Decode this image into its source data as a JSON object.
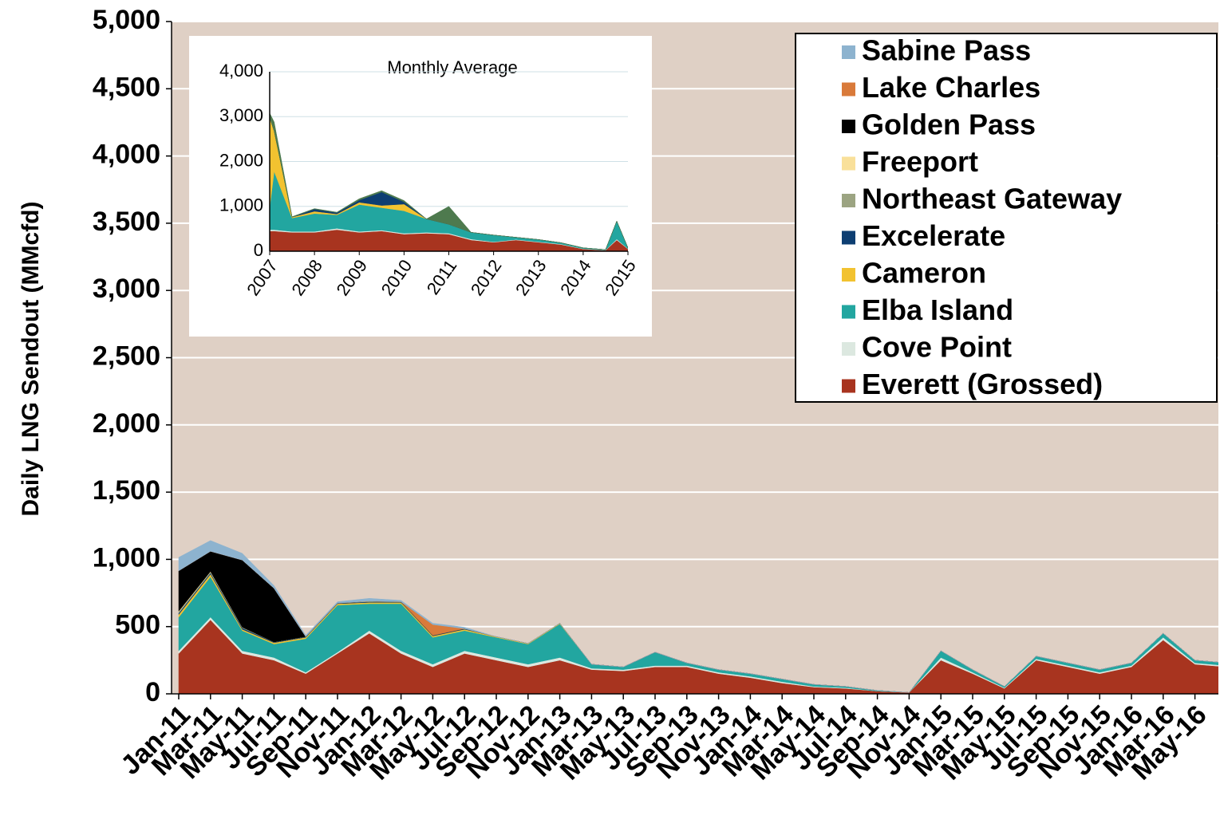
{
  "chart_data": [
    {
      "type": "stacked-area",
      "y_label": "Daily LNG Sendout (MMcfd)",
      "categories": [
        "Jan-11",
        "Mar-11",
        "May-11",
        "Jul-11",
        "Sep-11",
        "Nov-11",
        "Jan-12",
        "Mar-12",
        "May-12",
        "Jul-12",
        "Sep-12",
        "Nov-12",
        "Jan-13",
        "Mar-13",
        "May-13",
        "Jul-13",
        "Sep-13",
        "Nov-13",
        "Jan-14",
        "Mar-14",
        "May-14",
        "Jul-14",
        "Sep-14",
        "Nov-14",
        "Jan-15",
        "Mar-15",
        "May-15",
        "Jul-15",
        "Sep-15",
        "Nov-15",
        "Jan-16",
        "Mar-16",
        "May-16",
        null
      ],
      "ylim": [
        0,
        5000
      ],
      "yticks": [
        0,
        500,
        {
          "value": 1000,
          "label": "1,000"
        },
        {
          "value": 1500,
          "label": "1,500"
        },
        {
          "value": 2000,
          "label": "2,000"
        },
        {
          "value": 2500,
          "label": "2,500"
        },
        {
          "value": 3000,
          "label": "3,000"
        },
        {
          "value": 3500,
          "label": "3,500"
        },
        {
          "value": 4000,
          "label": "4,000"
        },
        {
          "value": 4500,
          "label": "4,500"
        },
        {
          "value": 5000,
          "label": "5,000"
        }
      ],
      "grid": true,
      "legend": "upper right",
      "series": [
        {
          "name": "Everett (Grossed)",
          "color": "#a8341f",
          "values": [
            300,
            550,
            300,
            250,
            150,
            300,
            450,
            300,
            200,
            300,
            250,
            200,
            250,
            180,
            170,
            200,
            200,
            150,
            120,
            80,
            50,
            40,
            20,
            10,
            250,
            150,
            40,
            250,
            200,
            150,
            200,
            400,
            220,
            200
          ]
        },
        {
          "name": "Cove Point",
          "color": "#dce8e0",
          "values": [
            20,
            20,
            20,
            20,
            10,
            10,
            20,
            20,
            20,
            20,
            20,
            20,
            20,
            10,
            10,
            10,
            10,
            10,
            10,
            10,
            5,
            5,
            0,
            0,
            20,
            10,
            5,
            10,
            10,
            10,
            10,
            20,
            10,
            10
          ]
        },
        {
          "name": "Elba Island",
          "color": "#22a6a0",
          "values": [
            250,
            300,
            150,
            100,
            250,
            350,
            200,
            350,
            200,
            150,
            150,
            150,
            250,
            30,
            20,
            100,
            20,
            20,
            20,
            20,
            15,
            10,
            5,
            0,
            50,
            20,
            10,
            20,
            20,
            20,
            20,
            30,
            20,
            20
          ]
        },
        {
          "name": "Cameron",
          "color": "#f2c230",
          "values": [
            20,
            20,
            10,
            10,
            10,
            10,
            10,
            10,
            10,
            10,
            5,
            5,
            5,
            0,
            0,
            0,
            0,
            0,
            0,
            0,
            0,
            0,
            0,
            0,
            0,
            0,
            0,
            0,
            0,
            0,
            0,
            0,
            0,
            0
          ]
        },
        {
          "name": "Excelerate",
          "color": "#0d3e72",
          "values": [
            10,
            10,
            10,
            5,
            5,
            5,
            5,
            5,
            5,
            5,
            0,
            0,
            0,
            0,
            0,
            0,
            0,
            0,
            0,
            0,
            0,
            0,
            0,
            0,
            0,
            0,
            0,
            0,
            0,
            0,
            0,
            0,
            0,
            0
          ]
        },
        {
          "name": "Northeast Gateway",
          "color": "#9ca482",
          "values": [
            10,
            5,
            5,
            0,
            0,
            0,
            5,
            0,
            0,
            0,
            0,
            0,
            0,
            0,
            0,
            0,
            0,
            0,
            0,
            0,
            0,
            0,
            0,
            0,
            0,
            0,
            0,
            0,
            0,
            0,
            0,
            0,
            0,
            0
          ]
        },
        {
          "name": "Freeport",
          "color": "#f9e09a",
          "values": [
            5,
            5,
            0,
            0,
            0,
            0,
            0,
            0,
            0,
            0,
            0,
            0,
            0,
            0,
            0,
            0,
            0,
            0,
            0,
            0,
            0,
            0,
            0,
            0,
            0,
            0,
            0,
            0,
            0,
            0,
            0,
            0,
            0,
            0
          ]
        },
        {
          "name": "Golden Pass",
          "color": "#000000",
          "values": [
            300,
            150,
            500,
            400,
            0,
            0,
            0,
            0,
            0,
            0,
            0,
            0,
            0,
            0,
            0,
            0,
            0,
            0,
            0,
            0,
            0,
            0,
            0,
            0,
            0,
            0,
            0,
            0,
            0,
            0,
            0,
            0,
            0,
            0
          ]
        },
        {
          "name": "Lake Charles",
          "color": "#d97a3a",
          "values": [
            0,
            0,
            0,
            0,
            0,
            0,
            0,
            0,
            80,
            0,
            0,
            0,
            0,
            0,
            0,
            0,
            0,
            0,
            0,
            0,
            0,
            0,
            0,
            0,
            0,
            0,
            0,
            0,
            0,
            0,
            0,
            0,
            0,
            0
          ]
        },
        {
          "name": "Sabine Pass",
          "color": "#8db3cf",
          "values": [
            100,
            80,
            50,
            20,
            10,
            10,
            20,
            10,
            10,
            10,
            0,
            0,
            0,
            0,
            0,
            0,
            0,
            0,
            0,
            0,
            0,
            0,
            0,
            0,
            0,
            0,
            0,
            0,
            0,
            0,
            0,
            0,
            0,
            0
          ]
        }
      ]
    },
    {
      "type": "stacked-area",
      "title": "Monthly  Average",
      "x": [
        2007,
        2007.1,
        2007.5,
        2008,
        2008.5,
        2009,
        2009.5,
        2010,
        2010.5,
        2011,
        2011.5,
        2012,
        2012.5,
        2013,
        2013.5,
        2014,
        2014.5,
        2014.75,
        2015
      ],
      "xlim": [
        2007,
        2015
      ],
      "xticks": [
        2007,
        2008,
        2009,
        2010,
        2011,
        2012,
        2013,
        2014,
        2015
      ],
      "ylim": [
        0,
        4000
      ],
      "yticks": [
        0,
        {
          "value": 1000,
          "label": "1,000"
        },
        {
          "value": 2000,
          "label": "2,000"
        },
        {
          "value": 3000,
          "label": "3,000"
        },
        {
          "value": 4000,
          "label": "4,000"
        }
      ],
      "grid": true,
      "series": [
        {
          "color": "#a8341f",
          "values": [
            450,
            450,
            420,
            420,
            480,
            420,
            450,
            380,
            400,
            380,
            250,
            200,
            250,
            200,
            150,
            50,
            20,
            250,
            50
          ]
        },
        {
          "color": "#dce8e0",
          "values": [
            30,
            30,
            20,
            20,
            30,
            20,
            20,
            20,
            20,
            20,
            20,
            10,
            10,
            10,
            10,
            5,
            5,
            20,
            5
          ]
        },
        {
          "color": "#22a6a0",
          "values": [
            500,
            1300,
            300,
            400,
            300,
            600,
            500,
            500,
            300,
            200,
            150,
            150,
            50,
            50,
            30,
            20,
            10,
            400,
            20
          ]
        },
        {
          "color": "#f2c230",
          "values": [
            2000,
            900,
            20,
            50,
            20,
            50,
            50,
            150,
            0,
            0,
            0,
            0,
            0,
            0,
            0,
            0,
            0,
            0,
            0
          ]
        },
        {
          "color": "#0d3e72",
          "values": [
            0,
            0,
            0,
            50,
            30,
            50,
            300,
            50,
            0,
            0,
            0,
            0,
            0,
            0,
            0,
            0,
            0,
            0,
            0
          ]
        },
        {
          "color": "#4e7a4e",
          "values": [
            100,
            200,
            10,
            10,
            10,
            30,
            30,
            30,
            0,
            400,
            0,
            0,
            0,
            0,
            0,
            0,
            0,
            0,
            0
          ]
        }
      ]
    }
  ]
}
